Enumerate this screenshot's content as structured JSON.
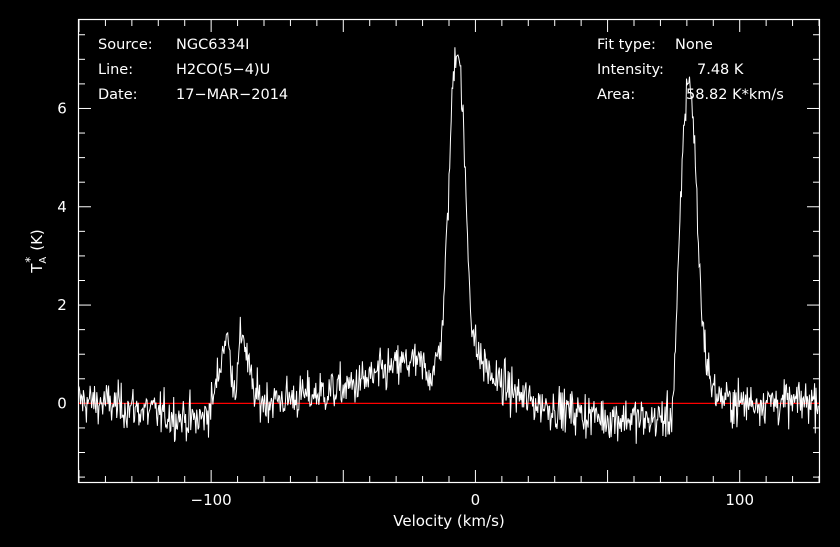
{
  "header_left": {
    "source_label": "Source:",
    "source_value": "NGC6334I",
    "line_label": "Line:",
    "line_value": "H2CO(5−4)U",
    "date_label": "Date:",
    "date_value": "17−MAR−2014"
  },
  "header_right": {
    "fit_label": "Fit type:",
    "fit_value": "None",
    "intensity_label": "Intensity:",
    "intensity_value": "7.48 K",
    "area_label": "Area:",
    "area_value": "58.82 K*km/s"
  },
  "colors": {
    "background": "#000000",
    "foreground": "#ffffff",
    "baseline": "#ff0000"
  },
  "chart_data": {
    "type": "line",
    "xlabel": "Velocity (km/s)",
    "ylabel_main": "T",
    "ylabel_sub": "A",
    "ylabel_sup": "*",
    "ylabel_unit": "(K)",
    "xlim": [
      -150,
      130
    ],
    "ylim": [
      -1.6,
      7.8
    ],
    "xticks": [
      -100,
      0,
      100
    ],
    "xtick_labels": [
      "−100",
      "0",
      "100"
    ],
    "yticks": [
      0,
      2,
      4,
      6
    ],
    "ytick_labels": [
      "0",
      "2",
      "4",
      "6"
    ],
    "baseline": 0,
    "grid": false,
    "noise_rms": 0.22,
    "series": [
      {
        "x": [
          -150,
          -140,
          -130,
          -120,
          -110,
          -106,
          -103,
          -100,
          -98,
          -96,
          -95,
          -94,
          -93,
          -92,
          -91,
          -90,
          -89,
          -88,
          -86,
          -84,
          -82,
          -80,
          -70,
          -60,
          -50,
          -40,
          -30,
          -25,
          -20,
          -17,
          -15,
          -13,
          -12,
          -11,
          -10,
          -9,
          -8,
          -7,
          -6,
          -5,
          -4,
          -3,
          -2,
          -1,
          0,
          2,
          4,
          6,
          8,
          10,
          15,
          20,
          30,
          40,
          50,
          60,
          65,
          70,
          74,
          75,
          76,
          77,
          78,
          79,
          80,
          81,
          82,
          83,
          84,
          85,
          86,
          88,
          90,
          95,
          100,
          110,
          120,
          130
        ],
        "y": [
          0.05,
          0.0,
          -0.1,
          -0.2,
          -0.3,
          -0.35,
          -0.3,
          -0.05,
          0.4,
          0.95,
          1.3,
          1.35,
          1.0,
          0.6,
          0.35,
          0.55,
          1.3,
          1.5,
          0.8,
          0.2,
          0.1,
          0.05,
          0.1,
          0.2,
          0.3,
          0.5,
          0.75,
          0.85,
          0.75,
          0.6,
          0.75,
          1.3,
          2.0,
          3.2,
          4.5,
          6.0,
          7.0,
          7.35,
          7.0,
          6.1,
          4.8,
          3.4,
          2.2,
          1.5,
          1.15,
          0.9,
          0.75,
          0.55,
          0.45,
          0.4,
          0.2,
          0.05,
          -0.1,
          -0.2,
          -0.3,
          -0.3,
          -0.35,
          -0.3,
          -0.3,
          0.3,
          1.6,
          3.0,
          4.5,
          5.7,
          6.4,
          6.7,
          6.1,
          5.2,
          3.8,
          2.5,
          1.6,
          0.7,
          0.25,
          0.05,
          0.0,
          0.05,
          0.0,
          0.1
        ]
      }
    ]
  }
}
